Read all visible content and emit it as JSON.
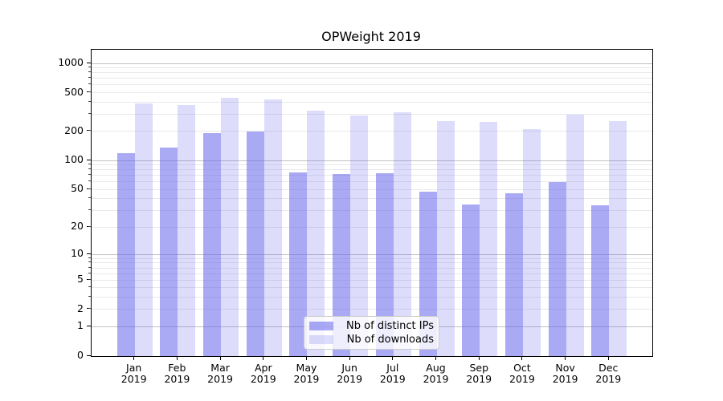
{
  "chart_data": {
    "type": "bar",
    "title": "OPWeight 2019",
    "categories": [
      "Jan 2019",
      "Feb 2019",
      "Mar 2019",
      "Apr 2019",
      "May 2019",
      "Jun 2019",
      "Jul 2019",
      "Aug 2019",
      "Sep 2019",
      "Oct 2019",
      "Nov 2019",
      "Dec 2019"
    ],
    "series": [
      {
        "name": "Nb of distinct IPs",
        "color": "#6262eb",
        "alpha": 0.55,
        "on_white": "#aaaaf2",
        "values": [
          120,
          137,
          192,
          198,
          75,
          73,
          74,
          47,
          35,
          46,
          60,
          34
        ]
      },
      {
        "name": "Nb of downloads",
        "color": "#6262eb",
        "alpha": 0.22,
        "on_white": "#dcdcfa",
        "values": [
          388,
          370,
          446,
          425,
          325,
          293,
          314,
          255,
          251,
          211,
          295,
          253
        ]
      }
    ],
    "xlabel": "",
    "ylabel": "",
    "yscale": "log1p",
    "ylim": [
      0,
      1380
    ],
    "yticks": [
      0,
      1,
      2,
      5,
      10,
      20,
      50,
      100,
      200,
      500,
      1000
    ],
    "grid": "horizontal; dark lines at 1,10,100,1000; faint lines at 2-9,20-90,200-900",
    "legend_position": "inside-bottom-center-left"
  },
  "colors": {
    "grid_major": "#c2c2c2",
    "grid_minor": "#e9e9e9",
    "axis": "#000000",
    "background": "#ffffff"
  }
}
